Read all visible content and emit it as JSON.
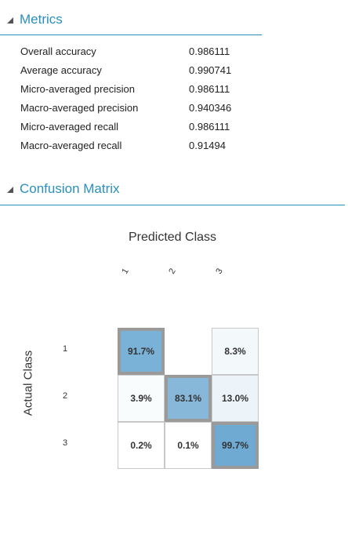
{
  "metrics": {
    "header": "Metrics",
    "rows": [
      {
        "name": "Overall accuracy",
        "value": "0.986111"
      },
      {
        "name": "Average accuracy",
        "value": "0.990741"
      },
      {
        "name": "Micro-averaged precision",
        "value": "0.986111"
      },
      {
        "name": "Macro-averaged precision",
        "value": "0.940346"
      },
      {
        "name": "Micro-averaged recall",
        "value": "0.986111"
      },
      {
        "name": "Macro-averaged recall",
        "value": "0.91494"
      }
    ]
  },
  "confusion_matrix": {
    "header": "Confusion Matrix",
    "predicted_title": "Predicted Class",
    "actual_title": "Actual Class",
    "classes": [
      "1",
      "2",
      "3"
    ],
    "cells": [
      [
        {
          "text": "91.7%",
          "fraction": 0.917
        },
        {
          "text": "",
          "fraction": 0.0
        },
        {
          "text": "8.3%",
          "fraction": 0.083
        }
      ],
      [
        {
          "text": "3.9%",
          "fraction": 0.039
        },
        {
          "text": "83.1%",
          "fraction": 0.831
        },
        {
          "text": "13.0%",
          "fraction": 0.13
        }
      ],
      [
        {
          "text": "0.2%",
          "fraction": 0.002
        },
        {
          "text": "0.1%",
          "fraction": 0.001
        },
        {
          "text": "99.7%",
          "fraction": 0.997
        }
      ]
    ]
  },
  "colors": {
    "accent": "#2a8fbd",
    "diag_border": "#9a9a9a"
  },
  "icons": {
    "section_toggle": "collapse-triangle-icon"
  }
}
